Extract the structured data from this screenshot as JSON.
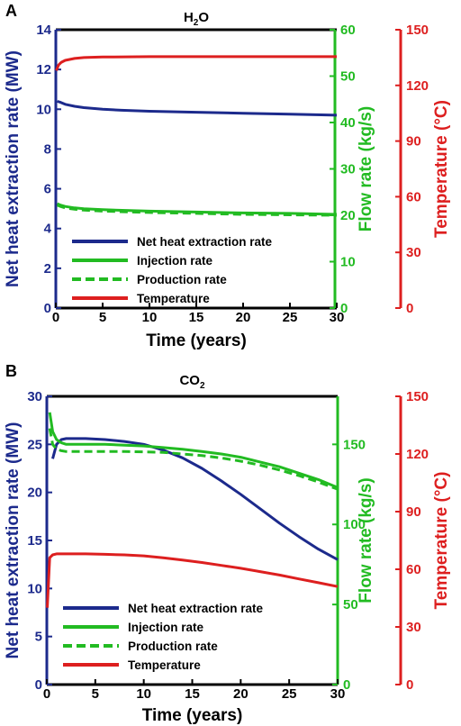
{
  "colors": {
    "blue": "#1c2a8c",
    "green": "#22bb22",
    "red": "#dd1f1f",
    "frame": "#000000"
  },
  "panels": [
    {
      "letter": "A",
      "title": "H",
      "title_sub": "2",
      "title_tail": "O"
    },
    {
      "letter": "B",
      "title": "CO",
      "title_sub": "2",
      "title_tail": ""
    }
  ],
  "chart_data": [
    {
      "type": "line",
      "panel": "A",
      "title": "H2O",
      "xlabel": "Time (years)",
      "ylabel_left": "Net heat extraction rate (MW)",
      "ylabel_mid": "Flow rate (kg/s)",
      "ylabel_right": "Temperature (°C)",
      "xlim": [
        0,
        30
      ],
      "x_ticks": [
        "0",
        "5",
        "10",
        "15",
        "20",
        "25",
        "30"
      ],
      "axes": {
        "left": {
          "lim": [
            0,
            14
          ],
          "ticks": [
            "0",
            "2",
            "4",
            "6",
            "8",
            "10",
            "12",
            "14"
          ],
          "color": "blue"
        },
        "mid": {
          "lim": [
            0,
            60
          ],
          "ticks": [
            "0",
            "10",
            "20",
            "30",
            "40",
            "50",
            "60"
          ],
          "color": "green"
        },
        "right": {
          "lim": [
            0,
            150
          ],
          "ticks": [
            "0",
            "30",
            "60",
            "90",
            "120",
            "150"
          ],
          "color": "red"
        }
      },
      "legend_position": "bottom-left",
      "series": [
        {
          "name": "Net heat extraction rate",
          "axis": "left",
          "color": "blue",
          "dash": "solid",
          "x": [
            0.15,
            0.5,
            1,
            2,
            3,
            5,
            7,
            10,
            15,
            20,
            25,
            30
          ],
          "y": [
            10.4,
            10.35,
            10.25,
            10.15,
            10.08,
            10.0,
            9.95,
            9.9,
            9.85,
            9.8,
            9.75,
            9.7
          ]
        },
        {
          "name": "Injection rate",
          "axis": "mid",
          "color": "green",
          "dash": "solid",
          "x": [
            0.15,
            0.5,
            1,
            2,
            3,
            5,
            10,
            15,
            20,
            25,
            30
          ],
          "y": [
            22.5,
            22.2,
            21.9,
            21.6,
            21.4,
            21.2,
            20.9,
            20.7,
            20.5,
            20.4,
            20.2
          ]
        },
        {
          "name": "Production rate",
          "axis": "mid",
          "color": "green",
          "dash": "dashed",
          "x": [
            0.15,
            0.5,
            1,
            2,
            3,
            5,
            10,
            15,
            20,
            25,
            30
          ],
          "y": [
            22.2,
            21.9,
            21.6,
            21.3,
            21.1,
            20.9,
            20.6,
            20.4,
            20.2,
            20.1,
            20.0
          ]
        },
        {
          "name": "Temperature",
          "axis": "right",
          "color": "red",
          "dash": "solid",
          "x": [
            0.05,
            0.3,
            0.6,
            1,
            2,
            3,
            5,
            10,
            15,
            20,
            25,
            30
          ],
          "y": [
            128,
            131,
            132.5,
            133.5,
            134.5,
            135,
            135.3,
            135.5,
            135.5,
            135.5,
            135.5,
            135.5
          ]
        }
      ]
    },
    {
      "type": "line",
      "panel": "B",
      "title": "CO2",
      "xlabel": "Time (years)",
      "ylabel_left": "Net heat extraction rate (MW)",
      "ylabel_mid": "Flow rate (kg/s)",
      "ylabel_right": "Temperature (°C)",
      "xlim": [
        0,
        30
      ],
      "x_ticks": [
        "0",
        "5",
        "10",
        "15",
        "20",
        "25",
        "30"
      ],
      "axes": {
        "left": {
          "lim": [
            0,
            30
          ],
          "ticks": [
            "0",
            "5",
            "10",
            "15",
            "20",
            "25",
            "30"
          ],
          "color": "blue"
        },
        "mid": {
          "lim": [
            0,
            180
          ],
          "ticks": [
            "0",
            "50",
            "100",
            "150"
          ],
          "color": "green"
        },
        "right": {
          "lim": [
            0,
            150
          ],
          "ticks": [
            "0",
            "30",
            "60",
            "90",
            "120",
            "150"
          ],
          "color": "red"
        }
      },
      "legend_position": "bottom-left",
      "series": [
        {
          "name": "Net heat extraction rate",
          "axis": "left",
          "color": "blue",
          "dash": "solid",
          "x": [
            0.6,
            1,
            1.5,
            2,
            4,
            6,
            8,
            10,
            12,
            14,
            16,
            18,
            20,
            22,
            24,
            26,
            28,
            30
          ],
          "y": [
            23.5,
            25.0,
            25.5,
            25.6,
            25.6,
            25.5,
            25.3,
            25.0,
            24.4,
            23.6,
            22.5,
            21.2,
            19.8,
            18.3,
            16.8,
            15.4,
            14.1,
            13.0
          ]
        },
        {
          "name": "Injection rate",
          "axis": "mid",
          "color": "green",
          "dash": "solid",
          "x": [
            0.3,
            0.6,
            1,
            1.5,
            2,
            4,
            6,
            8,
            10,
            12,
            14,
            16,
            18,
            20,
            22,
            24,
            26,
            28,
            30
          ],
          "y": [
            170,
            158,
            153,
            151,
            150,
            150,
            150,
            149.5,
            149,
            148,
            147,
            145.5,
            144,
            142,
            139,
            136,
            132,
            128,
            123
          ]
        },
        {
          "name": "Production rate",
          "axis": "mid",
          "color": "green",
          "dash": "dashed",
          "x": [
            0.3,
            0.6,
            1,
            1.5,
            2,
            4,
            6,
            8,
            10,
            12,
            14,
            16,
            18,
            20,
            22,
            24,
            26,
            28,
            30
          ],
          "y": [
            160,
            150,
            147,
            146,
            145.5,
            145.5,
            145.5,
            145.5,
            145.3,
            145,
            144,
            143,
            141.5,
            139.5,
            137,
            134,
            130.5,
            126.5,
            122
          ]
        },
        {
          "name": "Temperature",
          "axis": "right",
          "color": "red",
          "dash": "solid",
          "x": [
            0.05,
            0.3,
            0.6,
            1,
            2,
            4,
            6,
            8,
            10,
            12,
            14,
            16,
            18,
            20,
            22,
            24,
            26,
            28,
            30
          ],
          "y": [
            40,
            66,
            67.5,
            68,
            68,
            68,
            67.8,
            67.5,
            67,
            66,
            64.8,
            63.5,
            62,
            60.5,
            58.8,
            57,
            55,
            53,
            51
          ]
        }
      ]
    }
  ]
}
